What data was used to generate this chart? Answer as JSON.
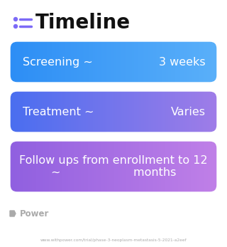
{
  "title": "Timeline",
  "title_icon_color": "#7c6af7",
  "title_fontsize": 20,
  "title_fontweight": "bold",
  "bg_color": "#ffffff",
  "boxes": [
    {
      "left_text": "Screening ~",
      "right_text": "3 weeks",
      "color_left": "#2d8ef5",
      "color_right": "#5ab0fa",
      "text_color": "#ffffff",
      "fontsize": 11.5,
      "multiline": false
    },
    {
      "left_text": "Treatment ~",
      "right_text": "Varies",
      "color_left": "#4a6ef0",
      "color_right": "#9f7de8",
      "text_color": "#ffffff",
      "fontsize": 11.5,
      "multiline": false
    },
    {
      "left_text": "Follow ups from enrollment to 12\n~                    months",
      "right_text": "",
      "color_left": "#9060e0",
      "color_right": "#c080e8",
      "text_color": "#ffffff",
      "fontsize": 11.5,
      "multiline": true
    }
  ],
  "footer_text": "Power",
  "footer_url": "www.withpower.com/trial/phase-3-neoplasm-metastasis-5-2021-a2eef",
  "footer_color": "#aaaaaa"
}
